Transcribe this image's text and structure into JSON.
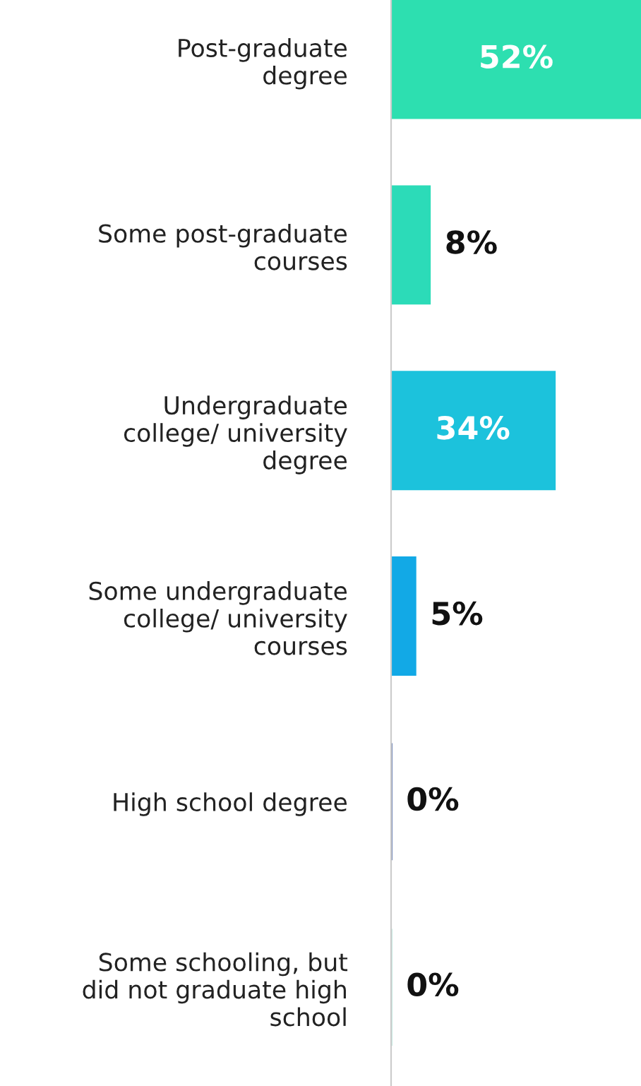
{
  "chart_data": {
    "type": "bar",
    "orientation": "horizontal",
    "value_labels": [
      "52%",
      "8%",
      "34%",
      "5%",
      "0%",
      "0%"
    ],
    "categories": [
      "Post-graduate\ndegree",
      "Some post-graduate\ncourses",
      "Undergraduate\ncollege/ university\ndegree",
      "Some undergraduate\ncollege/ university\ncourses",
      "High school degree",
      "Some schooling, but\ndid not graduate high\nschool"
    ],
    "values": [
      52,
      8,
      34,
      5,
      0,
      0
    ],
    "colors": [
      "#2ddfb0",
      "#2cdbb8",
      "#1cc2dc",
      "#12a9e6",
      "#1f3f8f",
      "#a8e6d8"
    ],
    "grid": false,
    "legend": false
  }
}
